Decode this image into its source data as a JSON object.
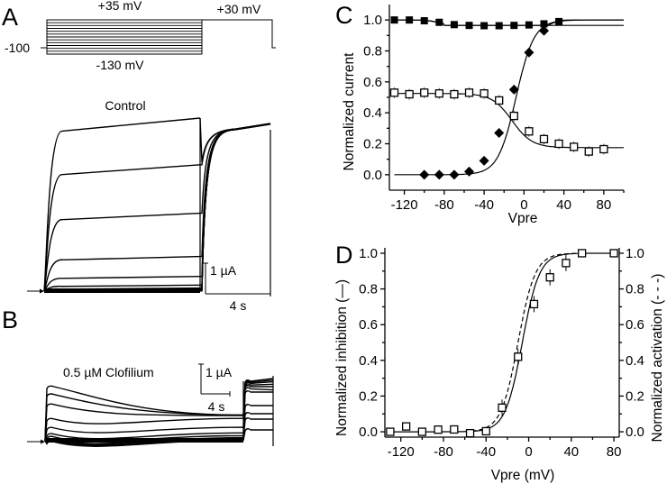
{
  "figure": {
    "panels": {
      "A": {
        "label": "A",
        "protocol": {
          "step_label": "+35 mV",
          "tail_label": "+30 mV",
          "holding_label": "-100",
          "bottom_label": "-130 mV",
          "num_steps": 12
        },
        "control_title": "Control",
        "scale_current": "1 µA",
        "scale_time": "4 s",
        "step_amplitudes_norm": [
          1.0,
          0.73,
          0.45,
          0.2,
          0.085,
          0.035,
          0.018,
          0.012,
          0.008,
          0.005,
          0.003,
          0.001
        ],
        "tail_amplitudes_norm": [
          1.0,
          0.99,
          0.98,
          0.97,
          0.96,
          0.95,
          0.94,
          0.93,
          0.92,
          0.91,
          0.9,
          0.89
        ]
      },
      "B": {
        "label": "B",
        "title": "0.5 µM Clofilium",
        "scale_current": "1 µA",
        "scale_time": "4 s",
        "step_peaks_norm": [
          1.0,
          0.86,
          0.68,
          0.42,
          0.26,
          0.15,
          0.1,
          0.06,
          0.04,
          0.02,
          0.01
        ],
        "step_ends_norm": [
          0.46,
          0.46,
          0.45,
          0.4,
          0.24,
          0.14,
          0.09,
          0.055,
          0.035,
          0.02,
          0.01
        ],
        "tail_peaks_norm": [
          1.0,
          0.98,
          0.96,
          0.93,
          0.9,
          0.86,
          0.8,
          0.55,
          0.4,
          0.3,
          0.1
        ]
      }
    }
  },
  "chart_data": [
    {
      "id": "C",
      "panel_label": "C",
      "type": "scatter",
      "xlabel": "Vpre",
      "ylabel": "Normalized current",
      "xlim": [
        -135,
        100
      ],
      "ylim": [
        -0.1,
        1.1
      ],
      "xticks": [
        -120,
        -80,
        -40,
        0,
        40,
        80
      ],
      "xtick_labels": [
        "-120",
        "-80",
        "-40",
        "0",
        "40",
        "80"
      ],
      "yticks": [
        0.0,
        0.2,
        0.4,
        0.6,
        0.8,
        1.0
      ],
      "ytick_labels": [
        "0.0",
        "0.2",
        "0.4",
        "0.6",
        "0.8",
        "1.0"
      ],
      "series": [
        {
          "name": "filled squares",
          "marker": "square-filled",
          "x": [
            -130,
            -115,
            -100,
            -85,
            -70,
            -55,
            -40,
            -25,
            -10,
            5,
            20,
            35
          ],
          "y": [
            1.0,
            1.0,
            0.995,
            0.985,
            0.97,
            0.965,
            0.963,
            0.963,
            0.965,
            0.968,
            0.975,
            0.99
          ],
          "fit": {
            "kind": "two-level",
            "lower": 0.965,
            "upper": 1.0
          }
        },
        {
          "name": "open squares",
          "marker": "square-open",
          "x": [
            -130,
            -115,
            -100,
            -85,
            -70,
            -55,
            -40,
            -25,
            -10,
            5,
            20,
            35,
            50,
            65,
            80
          ],
          "y": [
            0.53,
            0.52,
            0.53,
            0.525,
            0.52,
            0.53,
            0.525,
            0.48,
            0.38,
            0.28,
            0.23,
            0.2,
            0.18,
            0.15,
            0.165
          ],
          "fit": {
            "kind": "boltzmann",
            "top": 0.525,
            "bottom": 0.175,
            "v_half": -12,
            "k": 10
          }
        },
        {
          "name": "filled diamonds",
          "marker": "diamond-filled",
          "x": [
            -100,
            -85,
            -70,
            -55,
            -40,
            -25,
            -10,
            5,
            20
          ],
          "y": [
            0.0,
            0.0,
            0.0,
            0.02,
            0.09,
            0.27,
            0.55,
            0.79,
            0.93
          ],
          "fit": {
            "kind": "boltzmann-rise",
            "bottom": 0.0,
            "top": 1.0,
            "v_half": -8,
            "k": 9
          }
        }
      ]
    },
    {
      "id": "D",
      "panel_label": "D",
      "type": "scatter",
      "xlabel": "Vpre (mV)",
      "ylabel": "Normalized inhibition (—)",
      "ylabel_right": "Normalized activation (- - -)",
      "xlim": [
        -135,
        85
      ],
      "ylim": [
        -0.03,
        1.03
      ],
      "xticks": [
        -120,
        -80,
        -40,
        0,
        40,
        80
      ],
      "xtick_labels": [
        "-120",
        "-80",
        "-40",
        "0",
        "40",
        "80"
      ],
      "yticks": [
        0.0,
        0.2,
        0.4,
        0.6,
        0.8,
        1.0
      ],
      "ytick_labels": [
        "0.0",
        "0.2",
        "0.4",
        "0.6",
        "0.8",
        "1.0"
      ],
      "series": [
        {
          "name": "inhibition",
          "marker": "square-open",
          "x": [
            -130,
            -115,
            -100,
            -85,
            -70,
            -55,
            -40,
            -25,
            -10,
            5,
            20,
            35,
            50,
            80
          ],
          "y": [
            0.0,
            0.03,
            0.0,
            0.012,
            0.013,
            -0.008,
            0.003,
            0.135,
            0.42,
            0.715,
            0.865,
            0.945,
            1.0,
            1.0
          ],
          "fit_solid": {
            "kind": "boltzmann-rise",
            "v_half": -6,
            "k": 8
          },
          "fit_dashed": {
            "kind": "boltzmann-rise",
            "v_half": -10,
            "k": 8
          }
        }
      ]
    }
  ]
}
